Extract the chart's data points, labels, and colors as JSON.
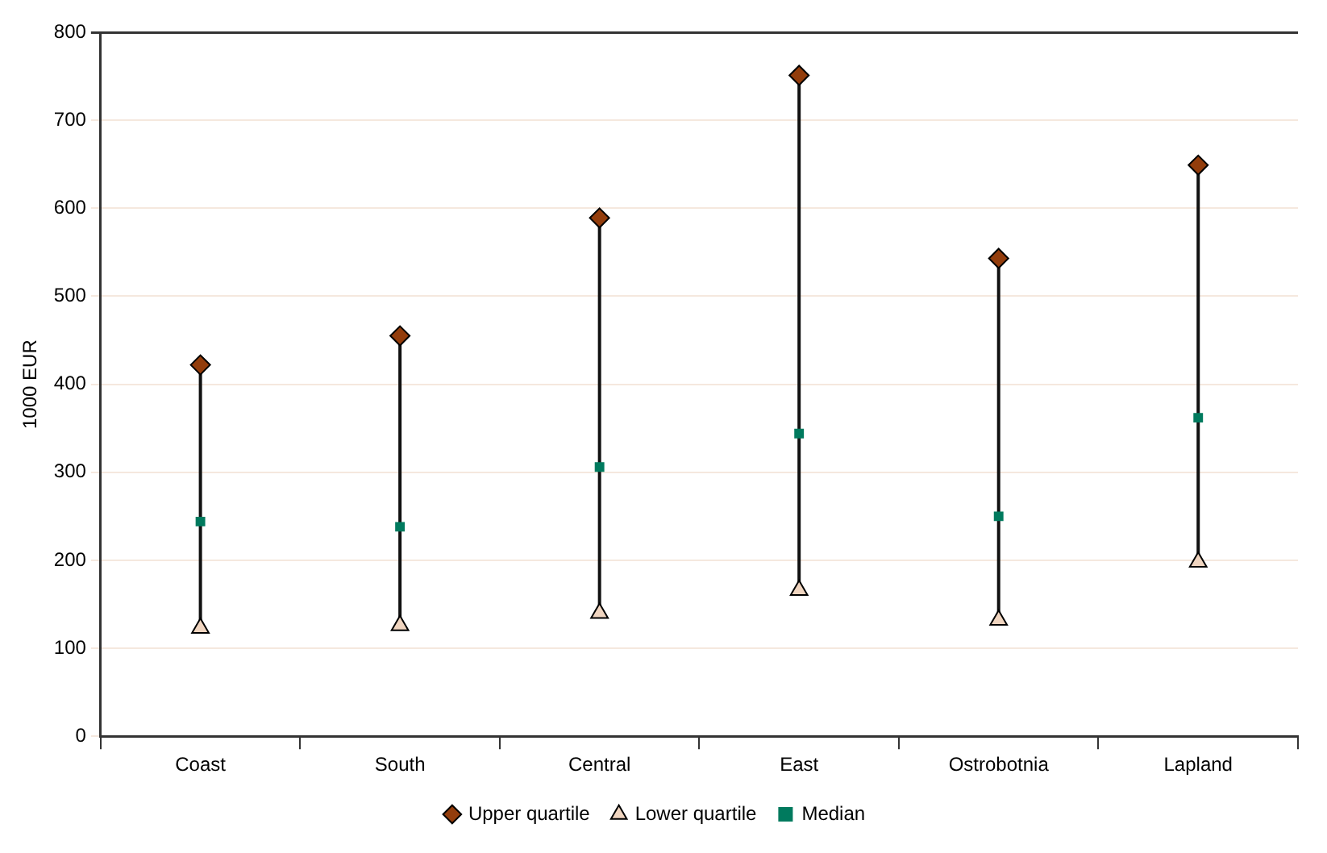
{
  "chart_data": {
    "type": "scatter",
    "ylabel": "1000 EUR",
    "categories": [
      "Coast",
      "South",
      "Central",
      "East",
      "Ostrobotnia",
      "Lapland"
    ],
    "series": [
      {
        "name": "Upper quartile",
        "color": "#933d0c",
        "marker": "diamond",
        "values": [
          422,
          455,
          589,
          751,
          543,
          649
        ]
      },
      {
        "name": "Lower quartile",
        "color": "#f0d5c0",
        "marker": "triangle",
        "values": [
          123,
          126,
          140,
          166,
          132,
          198
        ]
      },
      {
        "name": "Median",
        "color": "#007a5e",
        "marker": "square",
        "values": [
          244,
          238,
          306,
          344,
          250,
          362
        ]
      }
    ],
    "ylim": [
      0,
      800
    ],
    "yticks": [
      0,
      100,
      200,
      300,
      400,
      500,
      600,
      700,
      800
    ],
    "grid": "y",
    "legend": "bottom"
  }
}
